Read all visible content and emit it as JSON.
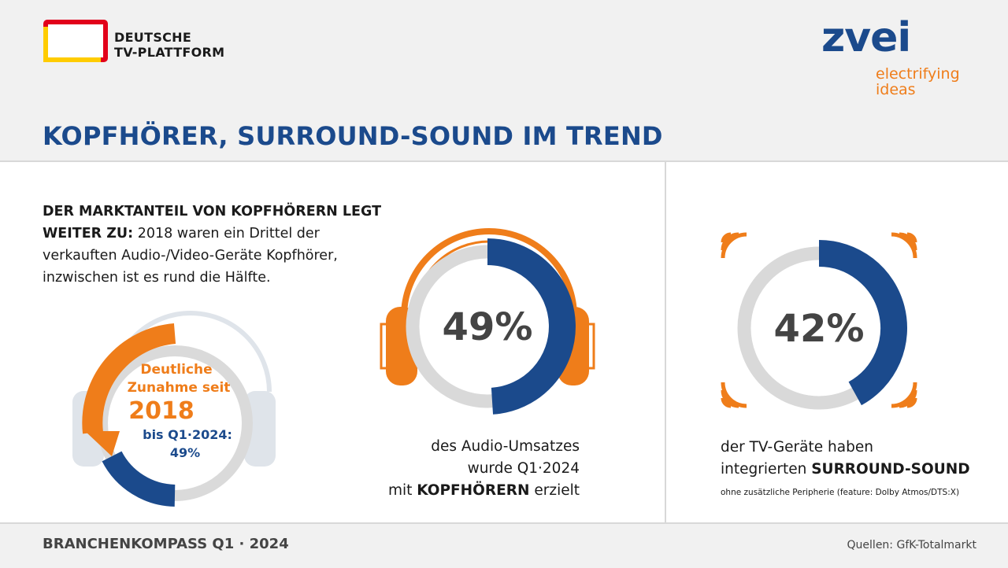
{
  "header": {
    "logo_line1": "DEUTSCHE",
    "logo_line2": "TV-PLATTFORM",
    "brand": "zvei",
    "brand_tag_line1": "electrifying",
    "brand_tag_line2": "ideas",
    "title": "KOPFHÖRER, SURROUND-SOUND IM TREND"
  },
  "intro": {
    "bold": "DER MARKTANTEIL VON KOPFHÖRERN LEGT WEITER ZU:",
    "text": " 2018 waren ein Drittel der verkauften Audio-/Video-Geräte Kopfhörer, inzwischen ist es rund die Hälfte."
  },
  "growth_graphic": {
    "line1": "Deutliche",
    "line2": "Zunahme seit",
    "year": "2018",
    "line3": "bis Q1·2024:",
    "line4": "49%"
  },
  "headphones_stat": {
    "value_label": "49%",
    "caption_line1": "des Audio-Umsatzes",
    "caption_line2": "wurde Q1·2024",
    "caption_line3_pre": "mit ",
    "caption_line3_bold": "KOPFHÖRERN",
    "caption_line3_post": " erzielt"
  },
  "surround_stat": {
    "value_label": "42%",
    "caption_line1": "der TV-Geräte haben",
    "caption_line2_pre": "integrierten ",
    "caption_line2_bold": "SURROUND-SOUND",
    "note": "ohne zusätzliche Peripherie (feature: Dolby Atmos/DTS:X)"
  },
  "footer": {
    "left": "BRANCHENKOMPASS Q1 · 2024",
    "right": "Quellen: GfK-Totalmarkt"
  },
  "colors": {
    "blue": "#1b4a8c",
    "orange": "#ef7d1a",
    "gray": "#d9d9d9",
    "red": "#e2001a",
    "yellow": "#ffcc00"
  },
  "chart_data": [
    {
      "type": "pie",
      "title": "",
      "categories": [
        "Kopfhörer",
        "Rest"
      ],
      "values": [
        49,
        51
      ],
      "labels": [
        "49%"
      ]
    },
    {
      "type": "pie",
      "title": "",
      "categories": [
        "Surround-Sound",
        "Rest"
      ],
      "values": [
        42,
        58
      ],
      "labels": [
        "42%"
      ]
    }
  ]
}
